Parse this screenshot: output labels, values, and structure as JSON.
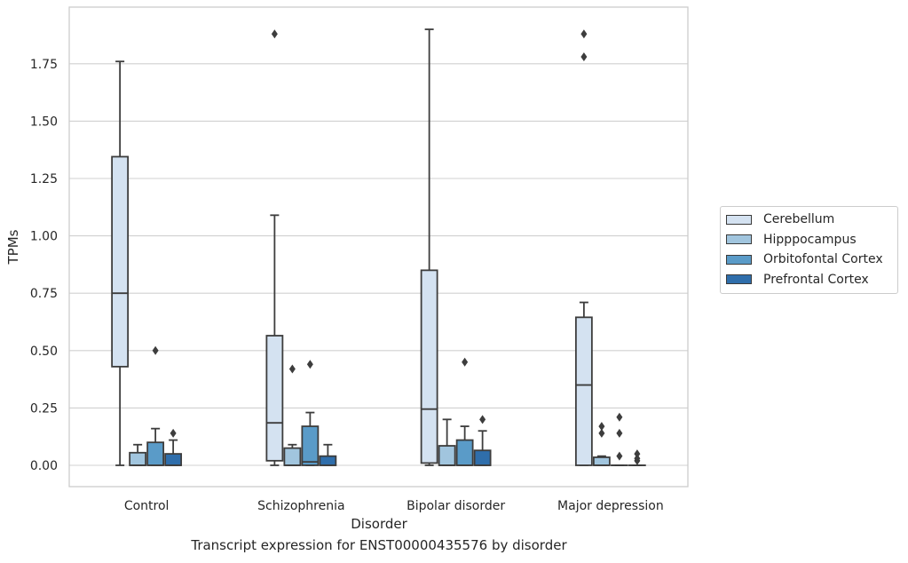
{
  "chart_data": {
    "type": "box",
    "title": "Transcript expression for ENST00000435576 by disorder",
    "xlabel": "Disorder",
    "ylabel": "TPMs",
    "ylim": [
      -0.09,
      1.99
    ],
    "yticks": [
      "0.00",
      "0.25",
      "0.50",
      "0.75",
      "1.00",
      "1.25",
      "1.50",
      "1.75"
    ],
    "grid": true,
    "legend_position": "right",
    "categories": [
      "Control",
      "Schizophrenia",
      "Bipolar disorder",
      "Major depression"
    ],
    "series": [
      {
        "name": "Cerebellum",
        "color": "#d4e2f1",
        "boxes": [
          {
            "min": 0.0,
            "q1": 0.43,
            "median": 0.75,
            "q3": 1.345,
            "max": 1.76,
            "outliers": []
          },
          {
            "min": 0.0,
            "q1": 0.02,
            "median": 0.185,
            "q3": 0.565,
            "max": 1.09,
            "outliers": [
              1.88
            ]
          },
          {
            "min": 0.0,
            "q1": 0.01,
            "median": 0.245,
            "q3": 0.85,
            "max": 1.9,
            "outliers": []
          },
          {
            "min": 0.0,
            "q1": 0.0,
            "median": 0.35,
            "q3": 0.645,
            "max": 0.71,
            "outliers": [
              1.88,
              1.78
            ]
          }
        ]
      },
      {
        "name": "Hipppocampus",
        "color": "#a1c5de",
        "boxes": [
          {
            "min": 0.0,
            "q1": 0.0,
            "median": 0.0,
            "q3": 0.055,
            "max": 0.09,
            "outliers": []
          },
          {
            "min": 0.0,
            "q1": 0.0,
            "median": 0.0,
            "q3": 0.075,
            "max": 0.09,
            "outliers": [
              0.42
            ]
          },
          {
            "min": 0.0,
            "q1": 0.0,
            "median": 0.0,
            "q3": 0.085,
            "max": 0.2,
            "outliers": []
          },
          {
            "min": 0.0,
            "q1": 0.0,
            "median": 0.0,
            "q3": 0.035,
            "max": 0.04,
            "outliers": [
              0.17,
              0.14
            ]
          }
        ]
      },
      {
        "name": "Orbitofontal Cortex",
        "color": "#5a9bc8",
        "boxes": [
          {
            "min": 0.0,
            "q1": 0.0,
            "median": 0.0,
            "q3": 0.1,
            "max": 0.16,
            "outliers": [
              0.5
            ]
          },
          {
            "min": 0.0,
            "q1": 0.0,
            "median": 0.015,
            "q3": 0.17,
            "max": 0.23,
            "outliers": [
              0.44
            ]
          },
          {
            "min": 0.0,
            "q1": 0.0,
            "median": 0.0,
            "q3": 0.11,
            "max": 0.17,
            "outliers": [
              0.45
            ]
          },
          {
            "min": 0.0,
            "q1": 0.0,
            "median": 0.0,
            "q3": 0.0,
            "max": 0.0,
            "outliers": [
              0.21,
              0.14,
              0.04
            ]
          }
        ]
      },
      {
        "name": "Prefrontal Cortex",
        "color": "#2f6eab",
        "boxes": [
          {
            "min": 0.0,
            "q1": 0.0,
            "median": 0.0,
            "q3": 0.05,
            "max": 0.11,
            "outliers": [
              0.14
            ]
          },
          {
            "min": 0.0,
            "q1": 0.0,
            "median": 0.0,
            "q3": 0.04,
            "max": 0.09,
            "outliers": []
          },
          {
            "min": 0.0,
            "q1": 0.0,
            "median": 0.0,
            "q3": 0.065,
            "max": 0.15,
            "outliers": [
              0.2
            ]
          },
          {
            "min": 0.0,
            "q1": 0.0,
            "median": 0.0,
            "q3": 0.0,
            "max": 0.0,
            "outliers": [
              0.05,
              0.03,
              0.02
            ]
          }
        ]
      }
    ]
  }
}
